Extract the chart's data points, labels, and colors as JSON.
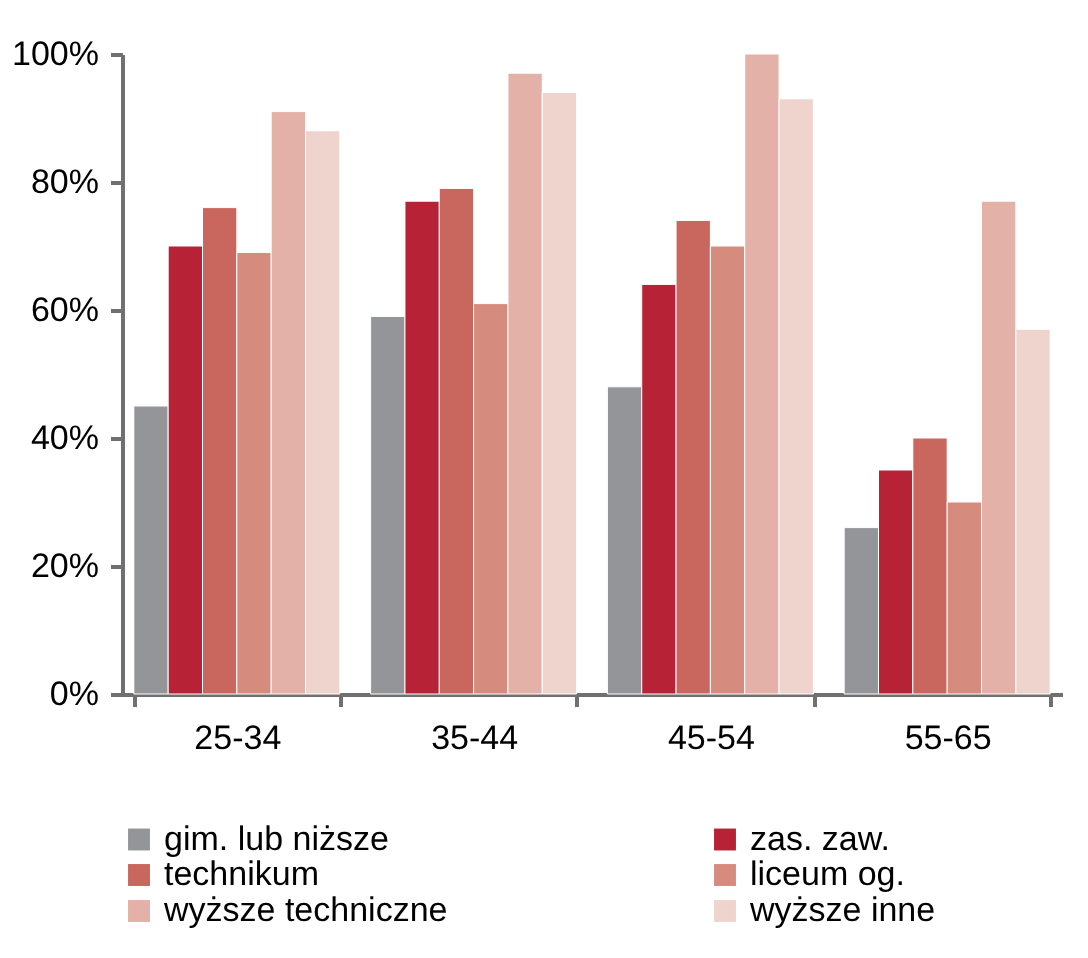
{
  "chart_data": {
    "type": "bar",
    "categories": [
      "25-34",
      "35-44",
      "45-54",
      "55-65"
    ],
    "series": [
      {
        "name": "gim. lub niższe",
        "color": "#939598",
        "values": [
          45,
          59,
          48,
          26
        ]
      },
      {
        "name": "zas. zaw.",
        "color": "#b82237",
        "values": [
          70,
          77,
          64,
          35
        ]
      },
      {
        "name": "technikum",
        "color": "#c9665d",
        "values": [
          76,
          79,
          74,
          40
        ]
      },
      {
        "name": "liceum og.",
        "color": "#d68b7f",
        "values": [
          69,
          61,
          70,
          30
        ]
      },
      {
        "name": "wyższe techniczne",
        "color": "#e3b1a7",
        "values": [
          91,
          97,
          100,
          77
        ]
      },
      {
        "name": "wyższe inne",
        "color": "#efd4cd",
        "values": [
          88,
          94,
          93,
          57
        ]
      }
    ],
    "ylim": [
      0,
      100
    ],
    "yticks": [
      {
        "value": 0,
        "label": "0%"
      },
      {
        "value": 20,
        "label": "20%"
      },
      {
        "value": 40,
        "label": "40%"
      },
      {
        "value": 60,
        "label": "60%"
      },
      {
        "value": 80,
        "label": "80%"
      },
      {
        "value": 100,
        "label": "100%"
      }
    ],
    "grid": false,
    "legend": "bottom"
  }
}
